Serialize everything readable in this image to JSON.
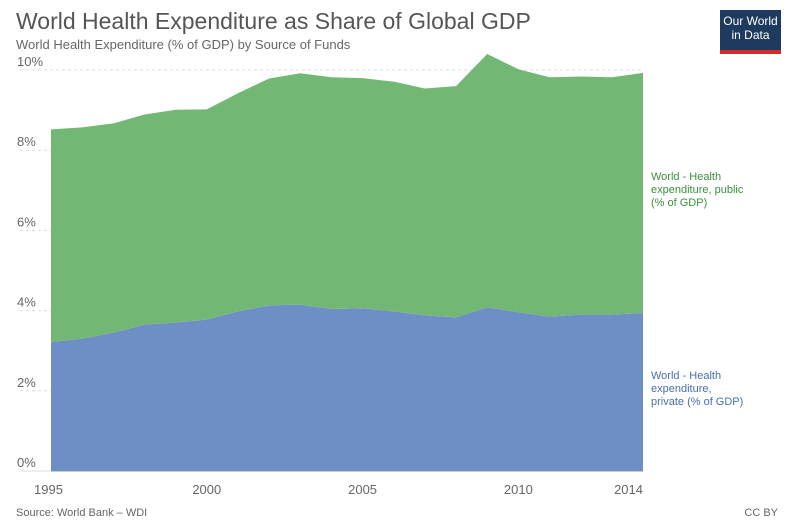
{
  "header": {
    "title": "World Health Expenditure as Share of Global GDP",
    "subtitle": "World Health Expenditure (% of GDP) by Source of Funds"
  },
  "logo": {
    "line1": "Our World",
    "line2": "in Data"
  },
  "footer": {
    "source": "Source: World Bank – WDI",
    "license": "CC BY"
  },
  "colors": {
    "private": "#6e8fc6",
    "public": "#72b874",
    "public_text": "#3a8f3e",
    "private_text": "#4a6fb0",
    "grid": "#dddddd"
  },
  "chart_data": {
    "type": "area",
    "stacked": true,
    "x": [
      1995,
      1996,
      1997,
      1998,
      1999,
      2000,
      2001,
      2002,
      2003,
      2004,
      2005,
      2006,
      2007,
      2008,
      2009,
      2010,
      2011,
      2012,
      2013,
      2014
    ],
    "series": [
      {
        "name": "World - Health expenditure, private (% of GDP)",
        "label_lines": [
          "World - Health",
          "expenditure,",
          "private (% of GDP)"
        ],
        "values": [
          3.22,
          3.3,
          3.45,
          3.65,
          3.7,
          3.78,
          3.98,
          4.13,
          4.15,
          4.04,
          4.06,
          3.98,
          3.88,
          3.83,
          4.08,
          3.96,
          3.85,
          3.9,
          3.9,
          3.94
        ]
      },
      {
        "name": "World - Health expenditure, public (% of GDP)",
        "label_lines": [
          "World - Health",
          "expenditure, public",
          "(% of GDP)"
        ],
        "values": [
          5.3,
          5.27,
          5.22,
          5.24,
          5.31,
          5.24,
          5.44,
          5.66,
          5.77,
          5.78,
          5.74,
          5.73,
          5.66,
          5.77,
          6.32,
          6.06,
          5.97,
          5.94,
          5.92,
          5.99
        ]
      }
    ],
    "x_ticks": [
      1995,
      2000,
      2005,
      2010,
      2014
    ],
    "x_tick_labels": [
      "1995",
      "2000",
      "2005",
      "2010",
      "2014"
    ],
    "y_ticks": [
      0,
      2,
      4,
      6,
      8,
      10
    ],
    "y_tick_labels": [
      "0%",
      "2%",
      "4%",
      "6%",
      "8%",
      "10%"
    ],
    "ylim": [
      0,
      10.5
    ],
    "xlim": [
      1995,
      2014
    ],
    "grid": true,
    "legend": "right, inline labels"
  }
}
